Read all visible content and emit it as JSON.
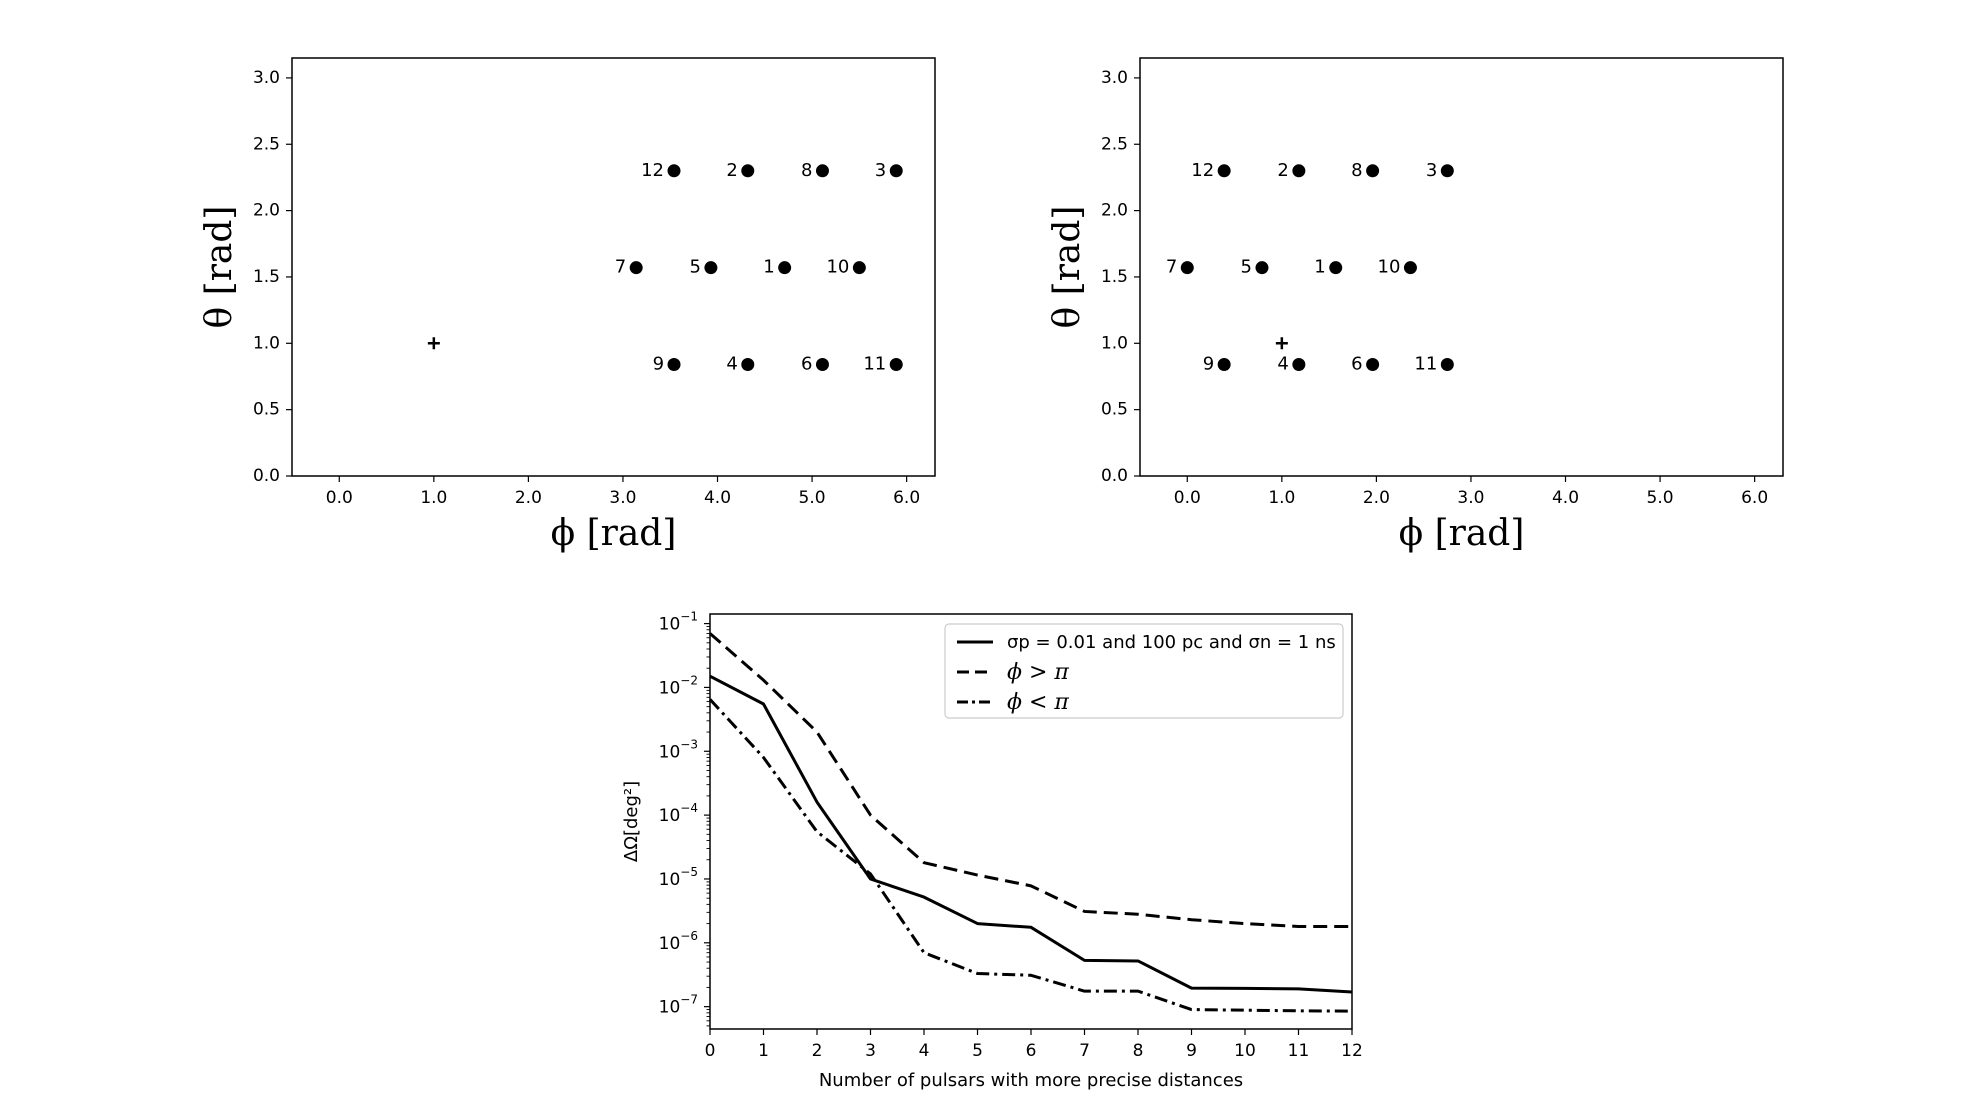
{
  "chart_data": [
    {
      "type": "scatter",
      "xlabel": "ϕ [rad]",
      "ylabel": "θ [rad]",
      "xlim": [
        -0.5,
        6.3
      ],
      "ylim": [
        0.0,
        3.15
      ],
      "xticks": [
        0.0,
        1.0,
        2.0,
        3.0,
        4.0,
        5.0,
        6.0
      ],
      "xtick_labels": [
        "0.0",
        "1.0",
        "2.0",
        "3.0",
        "4.0",
        "5.0",
        "6.0"
      ],
      "yticks": [
        0.0,
        0.5,
        1.0,
        1.5,
        2.0,
        2.5,
        3.0
      ],
      "ytick_labels": [
        "0.0",
        "0.5",
        "1.0",
        "1.5",
        "2.0",
        "2.5",
        "3.0"
      ],
      "source": {
        "x": 1.0,
        "y": 1.0
      },
      "points": [
        {
          "label": "12",
          "x": 3.54,
          "y": 2.3
        },
        {
          "label": "2",
          "x": 4.32,
          "y": 2.3
        },
        {
          "label": "8",
          "x": 5.11,
          "y": 2.3
        },
        {
          "label": "3",
          "x": 5.89,
          "y": 2.3
        },
        {
          "label": "7",
          "x": 3.14,
          "y": 1.57
        },
        {
          "label": "5",
          "x": 3.93,
          "y": 1.57
        },
        {
          "label": "1",
          "x": 4.71,
          "y": 1.57
        },
        {
          "label": "10",
          "x": 5.5,
          "y": 1.57
        },
        {
          "label": "9",
          "x": 3.54,
          "y": 0.84
        },
        {
          "label": "4",
          "x": 4.32,
          "y": 0.84
        },
        {
          "label": "6",
          "x": 5.11,
          "y": 0.84
        },
        {
          "label": "11",
          "x": 5.89,
          "y": 0.84
        }
      ]
    },
    {
      "type": "scatter",
      "xlabel": "ϕ [rad]",
      "ylabel": "θ [rad]",
      "xlim": [
        -0.5,
        6.3
      ],
      "ylim": [
        0.0,
        3.15
      ],
      "xticks": [
        0.0,
        1.0,
        2.0,
        3.0,
        4.0,
        5.0,
        6.0
      ],
      "xtick_labels": [
        "0.0",
        "1.0",
        "2.0",
        "3.0",
        "4.0",
        "5.0",
        "6.0"
      ],
      "yticks": [
        0.0,
        0.5,
        1.0,
        1.5,
        2.0,
        2.5,
        3.0
      ],
      "ytick_labels": [
        "0.0",
        "0.5",
        "1.0",
        "1.5",
        "2.0",
        "2.5",
        "3.0"
      ],
      "source": {
        "x": 1.0,
        "y": 1.0
      },
      "points": [
        {
          "label": "12",
          "x": 0.39,
          "y": 2.3
        },
        {
          "label": "2",
          "x": 1.18,
          "y": 2.3
        },
        {
          "label": "8",
          "x": 1.96,
          "y": 2.3
        },
        {
          "label": "3",
          "x": 2.75,
          "y": 2.3
        },
        {
          "label": "7",
          "x": 0.0,
          "y": 1.57
        },
        {
          "label": "5",
          "x": 0.79,
          "y": 1.57
        },
        {
          "label": "1",
          "x": 1.57,
          "y": 1.57
        },
        {
          "label": "10",
          "x": 2.36,
          "y": 1.57
        },
        {
          "label": "9",
          "x": 0.39,
          "y": 0.84
        },
        {
          "label": "4",
          "x": 1.18,
          "y": 0.84
        },
        {
          "label": "6",
          "x": 1.96,
          "y": 0.84
        },
        {
          "label": "11",
          "x": 2.75,
          "y": 0.84
        }
      ]
    },
    {
      "type": "line",
      "xlabel": "Number of pulsars with more precise distances",
      "ylabel": "ΔΩ[deg²]",
      "xlim": [
        0,
        12
      ],
      "ylim_log10": [
        -7.35,
        -0.85
      ],
      "yscale": "log",
      "xticks": [
        0,
        1,
        2,
        3,
        4,
        5,
        6,
        7,
        8,
        9,
        10,
        11,
        12
      ],
      "xtick_labels": [
        "0",
        "1",
        "2",
        "3",
        "4",
        "5",
        "6",
        "7",
        "8",
        "9",
        "10",
        "11",
        "12"
      ],
      "yticks_log10": [
        -7,
        -6,
        -5,
        -4,
        -3,
        -2,
        -1
      ],
      "ytick_labels": [
        "10",
        "10",
        "10",
        "10",
        "10",
        "10",
        "10"
      ],
      "ytick_exponents": [
        "−7",
        "−6",
        "−5",
        "−4",
        "−3",
        "−2",
        "−1"
      ],
      "legend_position": "upper-right",
      "x": [
        0,
        1,
        2,
        3,
        4,
        5,
        6,
        7,
        8,
        9,
        10,
        11,
        12
      ],
      "series": [
        {
          "name": "σp = 0.01 and 100 pc and σn = 1 ns",
          "style": "solid",
          "values": [
            0.015,
            0.0055,
            0.00016,
            1e-05,
            5.2e-06,
            2e-06,
            1.75e-06,
            5.3e-07,
            5.2e-07,
            1.95e-07,
            1.93e-07,
            1.9e-07,
            1.7e-07
          ]
        },
        {
          "name": "ϕ > π",
          "style": "dashed",
          "values": [
            0.07,
            0.013,
            0.002,
            0.0001,
            1.8e-05,
            1.15e-05,
            7.8e-06,
            3.1e-06,
            2.8e-06,
            2.3e-06,
            2e-06,
            1.8e-06,
            1.8e-06
          ]
        },
        {
          "name": "ϕ < π",
          "style": "dashdot",
          "values": [
            0.0065,
            0.0008,
            5.5e-05,
            1.2e-05,
            7e-07,
            3.3e-07,
            3.1e-07,
            1.75e-07,
            1.75e-07,
            9e-08,
            8.8e-08,
            8.6e-08,
            8.5e-08
          ]
        }
      ]
    }
  ]
}
